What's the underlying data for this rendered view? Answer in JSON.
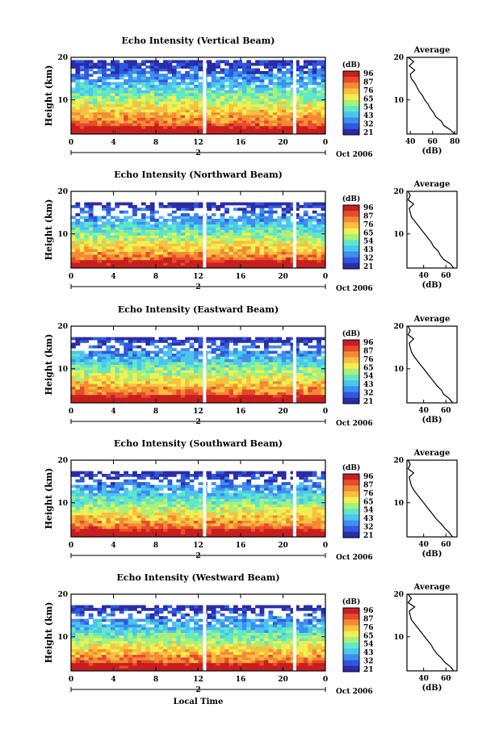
{
  "chart_data": [
    {
      "type": "heatmap",
      "title": "Echo Intensity (Vertical Beam)",
      "ylabel": "Height (km)",
      "ylim": [
        2,
        20
      ],
      "yticks": [
        "20",
        "10"
      ],
      "xlim": [
        0,
        24
      ],
      "xticks": [
        "0",
        "4",
        "8",
        "12",
        "16",
        "20",
        "0"
      ],
      "day_label": "2",
      "date_label": "Oct 2006",
      "colorbar": {
        "unit": "(dB)",
        "labels": [
          "96",
          "87",
          "76",
          "65",
          "54",
          "43",
          "32",
          "21"
        ]
      },
      "data_gaps_hours": [
        12.6,
        21.1
      ],
      "profile": {
        "title": "Average",
        "xlabel": "(dB)",
        "xticks": [
          "40",
          "60",
          "80"
        ],
        "xlim": [
          37,
          82
        ],
        "yticks": [
          "20",
          "10"
        ],
        "heights": [
          2,
          3,
          4,
          5,
          6,
          7,
          8,
          9,
          10,
          11,
          12,
          13,
          14,
          15,
          16,
          17,
          18,
          19,
          20
        ],
        "values": [
          80,
          76,
          70,
          68,
          63,
          61,
          58,
          56,
          53,
          51,
          48,
          46,
          44,
          41,
          40,
          44,
          39,
          43,
          38
        ]
      }
    },
    {
      "type": "heatmap",
      "title": "Echo Intensity (Northward Beam)",
      "ylabel": "Height (km)",
      "ylim": [
        2,
        20
      ],
      "yticks": [
        "20",
        "10"
      ],
      "xlim": [
        0,
        24
      ],
      "xticks": [
        "0",
        "4",
        "8",
        "12",
        "16",
        "20",
        "0"
      ],
      "day_label": "2",
      "date_label": "Oct 2006",
      "colorbar": {
        "unit": "(dB)",
        "labels": [
          "96",
          "87",
          "76",
          "65",
          "54",
          "43",
          "32",
          "21"
        ]
      },
      "data_gaps_hours": [
        12.6,
        21.1
      ],
      "profile": {
        "title": "Average",
        "xlabel": "(dB)",
        "xticks": [
          "40",
          "60"
        ],
        "xlim": [
          25,
          70
        ],
        "yticks": [
          "20",
          "10"
        ],
        "heights": [
          2,
          3,
          4,
          5,
          6,
          7,
          8,
          9,
          10,
          11,
          12,
          13,
          14,
          15,
          16,
          17,
          18,
          19,
          20
        ],
        "values": [
          67,
          64,
          58,
          55,
          53,
          49,
          47,
          44,
          41,
          38,
          35,
          32,
          29,
          28,
          27,
          31,
          26,
          28,
          26
        ]
      }
    },
    {
      "type": "heatmap",
      "title": "Echo Intensity (Eastward Beam)",
      "ylabel": "Height (km)",
      "ylim": [
        2,
        20
      ],
      "yticks": [
        "20",
        "10"
      ],
      "xlim": [
        0,
        24
      ],
      "xticks": [
        "0",
        "4",
        "8",
        "12",
        "16",
        "20",
        "0"
      ],
      "day_label": "2",
      "date_label": "Oct 2006",
      "colorbar": {
        "unit": "(dB)",
        "labels": [
          "96",
          "87",
          "76",
          "65",
          "54",
          "43",
          "32",
          "21"
        ]
      },
      "data_gaps_hours": [
        12.6,
        21.1
      ],
      "profile": {
        "title": "Average",
        "xlabel": "(dB)",
        "xticks": [
          "40",
          "60"
        ],
        "xlim": [
          25,
          70
        ],
        "yticks": [
          "20",
          "10"
        ],
        "heights": [
          2,
          3,
          4,
          5,
          6,
          7,
          8,
          9,
          10,
          11,
          12,
          13,
          14,
          15,
          16,
          17,
          18,
          19,
          20
        ],
        "values": [
          66,
          63,
          58,
          56,
          52,
          49,
          46,
          43,
          40,
          37,
          34,
          31,
          29,
          28,
          27,
          31,
          26,
          28,
          26
        ]
      }
    },
    {
      "type": "heatmap",
      "title": "Echo Intensity (Southward Beam)",
      "ylabel": "Height (km)",
      "ylim": [
        2,
        20
      ],
      "yticks": [
        "20",
        "10"
      ],
      "xlim": [
        0,
        24
      ],
      "xticks": [
        "0",
        "4",
        "8",
        "12",
        "16",
        "20",
        "0"
      ],
      "day_label": "2",
      "date_label": "Oct 2006",
      "colorbar": {
        "unit": "(dB)",
        "labels": [
          "96",
          "87",
          "76",
          "65",
          "54",
          "43",
          "32",
          "21"
        ]
      },
      "data_gaps_hours": [
        12.6,
        21.1
      ],
      "profile": {
        "title": "Average",
        "xlabel": "(dB)",
        "xticks": [
          "40",
          "60"
        ],
        "xlim": [
          25,
          70
        ],
        "yticks": [
          "20",
          "10"
        ],
        "heights": [
          2,
          3,
          4,
          5,
          6,
          7,
          8,
          9,
          10,
          11,
          12,
          13,
          14,
          15,
          16,
          17,
          18,
          19,
          20
        ],
        "values": [
          66,
          63,
          59,
          56,
          52,
          49,
          46,
          43,
          40,
          37,
          34,
          31,
          29,
          28,
          27,
          31,
          26,
          28,
          26
        ]
      }
    },
    {
      "type": "heatmap",
      "title": "Echo Intensity (Westward Beam)",
      "ylabel": "Height (km)",
      "ylim": [
        2,
        20
      ],
      "yticks": [
        "20",
        "10"
      ],
      "xlim": [
        0,
        24
      ],
      "xticks": [
        "0",
        "4",
        "8",
        "12",
        "16",
        "20",
        "0"
      ],
      "day_label": "2",
      "date_label": "Oct 2006",
      "xlabel": "Local Time",
      "colorbar": {
        "unit": "(dB)",
        "labels": [
          "96",
          "87",
          "76",
          "65",
          "54",
          "43",
          "32",
          "21"
        ]
      },
      "data_gaps_hours": [
        12.6,
        21.1
      ],
      "profile": {
        "title": "Average",
        "xlabel": "(dB)",
        "xticks": [
          "40",
          "60"
        ],
        "xlim": [
          25,
          70
        ],
        "yticks": [
          "20",
          "10"
        ],
        "heights": [
          2,
          3,
          4,
          5,
          6,
          7,
          8,
          9,
          10,
          11,
          12,
          13,
          14,
          15,
          16,
          17,
          18,
          19,
          20
        ],
        "values": [
          67,
          64,
          59,
          56,
          52,
          49,
          47,
          44,
          41,
          38,
          35,
          32,
          29,
          28,
          27,
          32,
          26,
          29,
          26
        ]
      }
    }
  ],
  "colors": {
    "colormap": [
      "#2b2ca8",
      "#2f58e0",
      "#3d8ef0",
      "#4cc4f0",
      "#5ee8c8",
      "#a8f07a",
      "#f0f050",
      "#f8c040",
      "#f48a34",
      "#e84a2c",
      "#c81e1e"
    ]
  }
}
